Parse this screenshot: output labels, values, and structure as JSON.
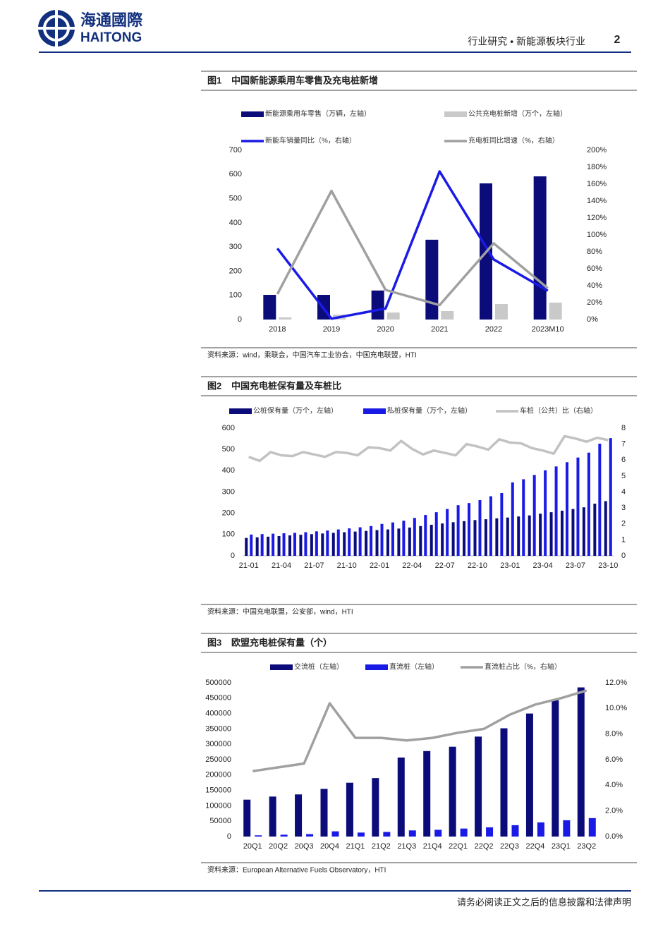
{
  "header": {
    "logo_cn": "海通國際",
    "logo_en": "HAITONG",
    "section": "行业研究 • 新能源板块行业",
    "page": "2"
  },
  "footer": "请务必阅读正文之后的信息披露和法律声明",
  "chart_data": [
    {
      "type": "bar",
      "label": "图1",
      "title": "中国新能源乘用车零售及充电桩新增",
      "categories": [
        "2018",
        "2019",
        "2020",
        "2021",
        "2022",
        "2023M10"
      ],
      "ylim": [
        0,
        700
      ],
      "yticks": [
        0,
        100,
        200,
        300,
        400,
        500,
        600,
        700
      ],
      "y2lim": [
        0,
        200
      ],
      "y2ticks": [
        {
          "value": 0,
          "label": "0%"
        },
        {
          "value": 20,
          "label": "20%"
        },
        {
          "value": 40,
          "label": "40%"
        },
        {
          "value": 60,
          "label": "60%"
        },
        {
          "value": 80,
          "label": "80%"
        },
        {
          "value": 100,
          "label": "100%"
        },
        {
          "value": 120,
          "label": "120%"
        },
        {
          "value": 140,
          "label": "140%"
        },
        {
          "value": 160,
          "label": "160%"
        },
        {
          "value": 180,
          "label": "180%"
        },
        {
          "value": 200,
          "label": "200%"
        }
      ],
      "series": [
        {
          "name": "新能源乘用车零售（万辆，左轴）",
          "type": "bar",
          "color": "#0b0b7a",
          "values": [
            102,
            102,
            120,
            330,
            563,
            592
          ]
        },
        {
          "name": "公共充电桩新增（万个，左轴）",
          "type": "bar",
          "color": "#c9c9c9",
          "values": [
            9,
            20,
            29,
            35,
            64,
            70
          ]
        },
        {
          "name": "新能车销量同比（%，右轴）",
          "type": "line",
          "axis": "y2",
          "color": "#1a1ae6",
          "values": [
            84,
            1,
            13,
            175,
            71,
            34
          ]
        },
        {
          "name": "充电桩同比增速（%，右轴）",
          "type": "line",
          "axis": "y2",
          "color": "#a0a0a0",
          "values": [
            30,
            152,
            35,
            17,
            90,
            37
          ]
        }
      ],
      "source": "资料来源：wind，乘联会，中国汽车工业协会，中国充电联盟，HTI"
    },
    {
      "type": "bar",
      "label": "图2",
      "title": "中国充电桩保有量及车桩比",
      "categories": [
        "21-01",
        null,
        null,
        "21-04",
        null,
        null,
        "21-07",
        null,
        null,
        "21-10",
        null,
        null,
        "22-01",
        null,
        null,
        "22-04",
        null,
        null,
        "22-07",
        null,
        null,
        "22-10",
        null,
        null,
        "23-01",
        null,
        null,
        "23-04",
        null,
        null,
        "23-07",
        null,
        null,
        "23-10"
      ],
      "ylim": [
        0,
        600
      ],
      "yticks": [
        0,
        100,
        200,
        300,
        400,
        500,
        600
      ],
      "y2lim": [
        0,
        8
      ],
      "y2ticks": [
        0,
        1,
        2,
        3,
        4,
        5,
        6,
        7,
        8
      ],
      "series": [
        {
          "name": "公桩保有量（万个，左轴）",
          "type": "bar",
          "color": "#0b0b7a",
          "values": [
            84,
            87,
            90,
            93,
            96,
            99,
            102,
            105,
            108,
            111,
            114,
            117,
            121,
            124,
            128,
            133,
            140,
            146,
            152,
            158,
            163,
            168,
            172,
            176,
            180,
            185,
            190,
            198,
            205,
            212,
            220,
            228,
            245,
            257
          ]
        },
        {
          "name": "私桩保有量（万个，左轴）",
          "type": "bar",
          "color": "#1a1ae6",
          "values": [
            100,
            102,
            104,
            106,
            108,
            111,
            115,
            119,
            124,
            129,
            134,
            140,
            150,
            157,
            165,
            178,
            192,
            205,
            220,
            238,
            248,
            262,
            280,
            295,
            345,
            360,
            380,
            402,
            420,
            440,
            462,
            485,
            527,
            553
          ]
        },
        {
          "name": "车桩（公共）比（右轴）",
          "type": "line",
          "axis": "y2",
          "color": "#c2c2c2",
          "values": [
            6.2,
            5.95,
            6.5,
            6.3,
            6.25,
            6.5,
            6.35,
            6.2,
            6.5,
            6.45,
            6.3,
            6.8,
            6.75,
            6.6,
            7.2,
            6.7,
            6.35,
            6.6,
            6.45,
            6.3,
            7.0,
            6.85,
            6.65,
            7.3,
            7.1,
            7.05,
            6.75,
            6.6,
            6.4,
            7.5,
            7.35,
            7.15,
            7.4,
            7.25
          ]
        }
      ],
      "source": "资料来源：中国充电联盟，公安部，wind，HTI"
    },
    {
      "type": "bar",
      "label": "图3",
      "title": "欧盟充电桩保有量（个）",
      "categories": [
        "20Q1",
        "20Q2",
        "20Q3",
        "20Q4",
        "21Q1",
        "21Q2",
        "21Q3",
        "21Q4",
        "22Q1",
        "22Q2",
        "22Q3",
        "22Q4",
        "23Q1",
        "23Q2"
      ],
      "ylim": [
        0,
        500000
      ],
      "yticks": [
        0,
        50000,
        100000,
        150000,
        200000,
        250000,
        300000,
        350000,
        400000,
        450000,
        500000
      ],
      "y2lim": [
        0,
        12
      ],
      "y2ticks": [
        {
          "value": 0,
          "label": "0.0%"
        },
        {
          "value": 2,
          "label": "2.0%"
        },
        {
          "value": 4,
          "label": "4.0%"
        },
        {
          "value": 6,
          "label": "6.0%"
        },
        {
          "value": 8,
          "label": "8.0%"
        },
        {
          "value": 10,
          "label": "10.0%"
        },
        {
          "value": 12,
          "label": "12.0%"
        }
      ],
      "series": [
        {
          "name": "交流桩（左轴）",
          "type": "bar",
          "color": "#0b0b7a",
          "values": [
            120000,
            130000,
            137000,
            155000,
            175000,
            190000,
            257000,
            278000,
            292000,
            325000,
            352000,
            400000,
            443000,
            485000
          ]
        },
        {
          "name": "直流桩（左轴）",
          "type": "bar",
          "color": "#1a1ae6",
          "values": [
            4000,
            6000,
            8000,
            17000,
            13000,
            15000,
            20000,
            22000,
            26000,
            30000,
            37000,
            46000,
            53000,
            60000
          ]
        },
        {
          "name": "直流桩占比（%，右轴）",
          "type": "line",
          "axis": "y2",
          "color": "#a0a0a0",
          "values": [
            5.1,
            5.4,
            5.7,
            10.4,
            7.7,
            7.7,
            7.5,
            7.7,
            8.1,
            8.4,
            9.5,
            10.3,
            10.8,
            11.4
          ]
        }
      ],
      "source": "资料来源：European Alternative Fuels Observatory，HTI"
    }
  ]
}
